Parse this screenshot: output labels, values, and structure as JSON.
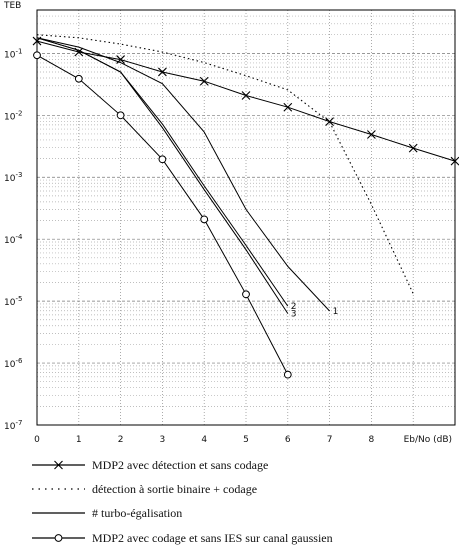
{
  "chart_data": {
    "type": "line",
    "ylabel": "TEB",
    "xlabel": "Eb/No (dB)",
    "x_ticks": [
      "0",
      "1",
      "2",
      "3",
      "4",
      "5",
      "6",
      "7",
      "8"
    ],
    "y_ticks": [
      "10-1",
      "10-2",
      "10-3",
      "10-4",
      "10-5",
      "10-6",
      "10-7"
    ],
    "xlim": [
      0,
      10
    ],
    "ylim_log10": [
      -7,
      -0.3
    ],
    "y_scale": "log",
    "grid": true,
    "series": [
      {
        "name": "MDP2 avec détection et sans codage",
        "style": "solid",
        "marker": "x",
        "x": [
          0,
          1,
          2,
          3,
          4,
          5,
          6,
          7,
          8,
          9,
          10
        ],
        "y": [
          0.158,
          0.105,
          0.0794,
          0.0501,
          0.0355,
          0.0209,
          0.0135,
          0.0079,
          0.0049,
          0.00295,
          0.00182
        ]
      },
      {
        "name": "détection à sortie binaire + codage",
        "style": "dotted",
        "marker": "",
        "x": [
          0,
          1,
          2,
          3,
          4,
          5,
          6,
          7,
          8,
          9
        ],
        "y": [
          0.2,
          0.178,
          0.141,
          0.105,
          0.0708,
          0.0436,
          0.0257,
          0.00776,
          0.000363,
          1.32e-05
        ]
      },
      {
        "name": "# turbo-égalisation",
        "label": "1",
        "style": "solid",
        "marker": "",
        "x": [
          0,
          1,
          2,
          3,
          4,
          5,
          6,
          7
        ],
        "y": [
          0.178,
          0.126,
          0.0708,
          0.0324,
          0.00537,
          0.000302,
          3.63e-05,
          6.92e-06
        ]
      },
      {
        "name": "# turbo-égalisation",
        "label": "2",
        "style": "solid",
        "marker": "",
        "x": [
          0,
          1,
          2,
          3,
          4,
          5,
          6
        ],
        "y": [
          0.178,
          0.112,
          0.0501,
          0.00724,
          0.000724,
          7.94e-05,
          8.3e-06
        ]
      },
      {
        "name": "# turbo-égalisation",
        "label": "3",
        "style": "solid",
        "marker": "",
        "x": [
          0,
          1,
          2,
          3,
          4,
          5,
          6
        ],
        "y": [
          0.178,
          0.112,
          0.0501,
          0.00631,
          0.00063,
          6.76e-05,
          6.3e-06
        ]
      },
      {
        "name": "MDP2 avec codage et sans IES sur canal gaussien",
        "style": "solid",
        "marker": "o",
        "x": [
          0,
          1,
          2,
          3,
          4,
          5,
          6
        ],
        "y": [
          0.0933,
          0.0389,
          0.01,
          0.00195,
          0.000209,
          1.29e-05,
          6.5e-07
        ]
      }
    ],
    "legend": [
      {
        "marker": "x",
        "style": "solid",
        "text": "MDP2 avec détection et sans codage"
      },
      {
        "marker": "",
        "style": "dotted",
        "text": "détection à sortie binaire + codage"
      },
      {
        "marker": "",
        "style": "solid",
        "text": "# turbo-égalisation"
      },
      {
        "marker": "o",
        "style": "solid",
        "text": "MDP2 avec codage et sans IES sur canal gaussien"
      }
    ],
    "legend_placement": "bottom"
  }
}
